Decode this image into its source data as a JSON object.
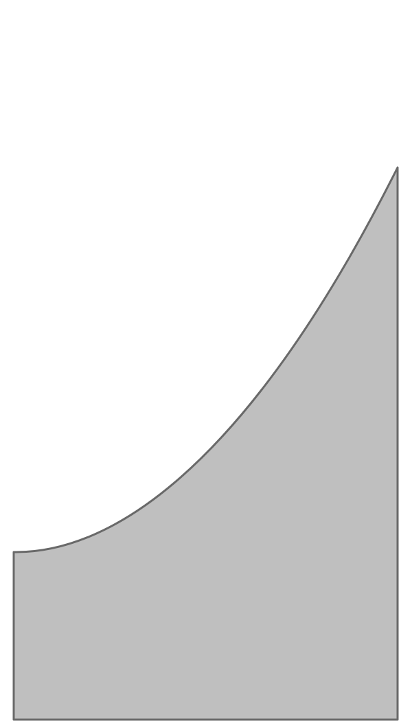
{
  "figure": {
    "shape": "area under a convex curve",
    "fill_color": "#bfbfbf",
    "stroke_color": "#696969",
    "background_color": "#ffffff"
  }
}
